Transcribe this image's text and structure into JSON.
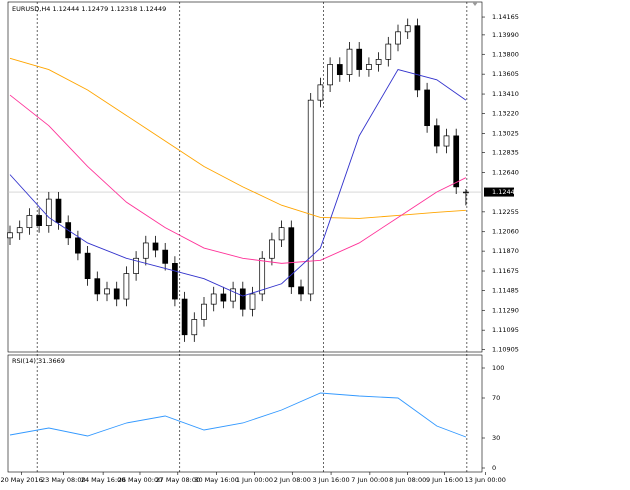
{
  "chart_data": {
    "type": "candlestick",
    "symbol": "EURUSD,H4",
    "ylim": [
      1.10881,
      1.14332
    ],
    "yticks": [
      1.14165,
      {
        "value": 1.1399,
        "label": "1.13990"
      },
      {
        "value": 1.138,
        "label": "1.13800"
      },
      1.13605,
      {
        "value": 1.1341,
        "label": "1.13410"
      },
      {
        "value": 1.1322,
        "label": "1.13220"
      },
      1.13025,
      1.12835,
      {
        "value": 1.1264,
        "label": "1.12640"
      },
      1.12255,
      {
        "value": 1.1206,
        "label": "1.12060"
      },
      {
        "value": 1.1187,
        "label": "1.11870"
      },
      1.11675,
      1.11485,
      {
        "value": 1.1129,
        "label": "1.11290"
      },
      1.11095,
      1.10905
    ],
    "xlabels": [
      {
        "value": 1.2,
        "label": "20 May 2016"
      },
      {
        "value": 5.5,
        "label": "23 May 08:00"
      },
      {
        "value": 9.6,
        "label": "24 May 16:00"
      },
      {
        "value": 13.4,
        "label": "26 May 00:00"
      },
      {
        "value": 17.3,
        "label": "27 May 08:00"
      },
      {
        "value": 21.3,
        "label": "30 May 16:00"
      },
      {
        "value": 25.2,
        "label": "1 Jun 00:00"
      },
      {
        "value": 29.1,
        "label": "2 Jun 08:00"
      },
      {
        "value": 33.1,
        "label": "3 Jun 16:00"
      },
      {
        "value": 37.1,
        "label": "7 Jun 00:00"
      },
      {
        "value": 41,
        "label": "8 Jun 08:00"
      },
      {
        "value": 44.8,
        "label": "9 Jun 16:00"
      },
      {
        "value": 49,
        "label": "13 Jun 00:00"
      }
    ],
    "separators": [
      2.8,
      17.5,
      32.3,
      47.1
    ],
    "open": [
      1.12,
      1.1205,
      1.121,
      1.1222,
      1.1212,
      1.1238,
      1.1215,
      1.12,
      1.1185,
      1.116,
      1.1145,
      1.115,
      1.114,
      1.1165,
      1.118,
      1.1195,
      1.1188,
      1.1175,
      1.114,
      1.1105,
      1.112,
      1.1135,
      1.1145,
      1.1138,
      1.115,
      1.113,
      1.1145,
      1.118,
      1.1198,
      1.121,
      1.1152,
      1.1145,
      1.1335,
      1.135,
      1.137,
      1.136,
      1.1385,
      1.1365,
      1.137,
      1.1375,
      1.139,
      1.1402,
      1.1408,
      1.1345,
      1.131,
      1.129,
      1.13,
      1.12444
    ],
    "high": [
      1.1212,
      1.1217,
      1.1229,
      1.1229,
      1.1245,
      1.1245,
      1.1222,
      1.1207,
      1.1192,
      1.1167,
      1.1157,
      1.1157,
      1.1172,
      1.1187,
      1.1202,
      1.1202,
      1.1195,
      1.1182,
      1.1147,
      1.1127,
      1.1142,
      1.1152,
      1.1152,
      1.1157,
      1.1157,
      1.1152,
      1.1187,
      1.1205,
      1.1217,
      1.1217,
      1.1159,
      1.1342,
      1.1357,
      1.1377,
      1.1377,
      1.1392,
      1.1392,
      1.1377,
      1.1382,
      1.1397,
      1.1409,
      1.1415,
      1.1415,
      1.1352,
      1.1317,
      1.1307,
      1.1307,
      1.12479
    ],
    "low": [
      1.1193,
      1.1198,
      1.1203,
      1.1205,
      1.1205,
      1.1208,
      1.1193,
      1.1178,
      1.1153,
      1.1138,
      1.1138,
      1.1133,
      1.1133,
      1.1158,
      1.1173,
      1.1181,
      1.1168,
      1.1133,
      1.1098,
      1.1098,
      1.1113,
      1.1128,
      1.1131,
      1.1131,
      1.1123,
      1.1123,
      1.1138,
      1.1173,
      1.1191,
      1.1145,
      1.1138,
      1.1138,
      1.1328,
      1.1343,
      1.1353,
      1.1353,
      1.1358,
      1.1358,
      1.1363,
      1.1368,
      1.1383,
      1.1395,
      1.1338,
      1.1303,
      1.1283,
      1.1283,
      1.1243,
      1.12318
    ],
    "close": [
      1.1205,
      1.121,
      1.1222,
      1.1212,
      1.1238,
      1.1215,
      1.12,
      1.1185,
      1.116,
      1.1145,
      1.115,
      1.114,
      1.1165,
      1.118,
      1.1195,
      1.1188,
      1.1175,
      1.114,
      1.1105,
      1.112,
      1.1135,
      1.1145,
      1.1138,
      1.115,
      1.113,
      1.1145,
      1.118,
      1.1198,
      1.121,
      1.1152,
      1.1145,
      1.1335,
      1.135,
      1.137,
      1.136,
      1.1385,
      1.1365,
      1.137,
      1.1375,
      1.139,
      1.1402,
      1.1408,
      1.1345,
      1.131,
      1.129,
      1.13,
      1.125,
      1.12449
    ],
    "ma_x": [
      0,
      4,
      8,
      12,
      16,
      20,
      24,
      28,
      32,
      36,
      40,
      44,
      47
    ],
    "series": [
      {
        "color": "#ffa500",
        "values": [
          1.1376,
          1.1365,
          1.1345,
          1.132,
          1.1295,
          1.127,
          1.125,
          1.1232,
          1.122,
          1.1219,
          1.1222,
          1.1225,
          1.1227
        ]
      },
      {
        "color": "#ff3399",
        "values": [
          1.134,
          1.131,
          1.127,
          1.1235,
          1.121,
          1.119,
          1.118,
          1.1175,
          1.1178,
          1.1195,
          1.122,
          1.1245,
          1.1259
        ]
      },
      {
        "color": "#3333cc",
        "values": [
          1.1262,
          1.122,
          1.1195,
          1.118,
          1.117,
          1.116,
          1.1143,
          1.1155,
          1.119,
          1.13,
          1.1365,
          1.1355,
          1.1335
        ]
      }
    ],
    "rsi": {
      "label": "RSI(14)",
      "current": 31.3669,
      "color": "#3399ff",
      "ylim": [
        0,
        100
      ],
      "yticks": [
        100,
        70,
        30,
        0
      ],
      "values": [
        33,
        40,
        32,
        45,
        52,
        38,
        45,
        58,
        75,
        72,
        70,
        42,
        31
      ]
    }
  }
}
